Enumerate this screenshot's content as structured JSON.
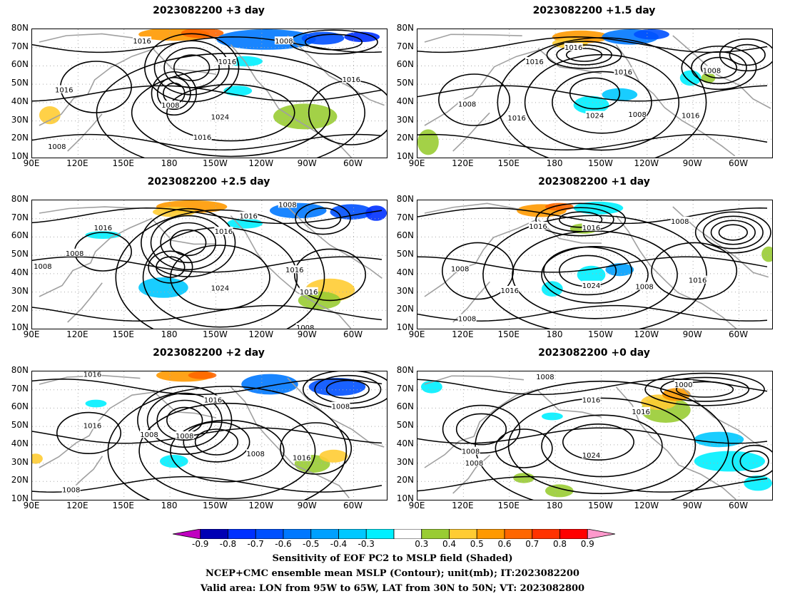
{
  "panels": [
    {
      "title": "2023082200  +3 day"
    },
    {
      "title": "2023082200  +1.5 day"
    },
    {
      "title": "2023082200  +2.5 day"
    },
    {
      "title": "2023082200  +1 day"
    },
    {
      "title": "2023082200  +2 day"
    },
    {
      "title": "2023082200  +0 day"
    }
  ],
  "axes": {
    "lat_labels": [
      "80N",
      "70N",
      "60N",
      "50N",
      "40N",
      "30N",
      "20N",
      "10N"
    ],
    "lon_labels": [
      "90E",
      "120E",
      "150E",
      "180",
      "150W",
      "120W",
      "90W",
      "60W"
    ]
  },
  "contour_labels": {
    "p0": [
      "1016",
      "1008",
      "1016",
      "1016",
      "1016",
      "1008",
      "1024",
      "1016",
      "1008"
    ],
    "p1": [
      "1016",
      "1016",
      "1008",
      "1016",
      "1008",
      "1024",
      "1016",
      "1008",
      "1016"
    ],
    "p2": [
      "1008",
      "1016",
      "1016",
      "1016",
      "1008",
      "1008",
      "1024",
      "1016",
      "1016",
      "1008"
    ],
    "p3": [
      "1016",
      "1016",
      "1008",
      "1008",
      "1016",
      "1024",
      "1008",
      "1016",
      "1008"
    ],
    "p4": [
      "1016",
      "1016",
      "1016",
      "1008",
      "1008",
      "1008",
      "1008",
      "1016",
      "1008"
    ],
    "p5": [
      "1008",
      "1000",
      "1016",
      "1016",
      "1008",
      "1024",
      "1008"
    ]
  },
  "colorbar": {
    "labels": [
      "-0.9",
      "-0.8",
      "-0.7",
      "-0.6",
      "-0.5",
      "-0.4",
      "-0.3",
      "0.3",
      "0.4",
      "0.5",
      "0.6",
      "0.7",
      "0.8",
      "0.9"
    ],
    "colors": [
      "#c000c0",
      "#0000b4",
      "#0030ff",
      "#0050ff",
      "#0078ff",
      "#00a0ff",
      "#00c8ff",
      "#00f0ff",
      "#ffffff",
      "#99cc33",
      "#ffcc33",
      "#ff9900",
      "#ff6600",
      "#ff3300",
      "#ff0000",
      "#ff99cc"
    ]
  },
  "footer": {
    "line1": "Sensitivity of EOF PC2 to MSLP field (Shaded)",
    "line2": "NCEP+CMC ensemble mean MSLP (Contour); unit(mb); IT:2023082200",
    "line3": "Valid area: LON from 95W to 65W, LAT from 30N to 50N; VT: 2023082800"
  }
}
